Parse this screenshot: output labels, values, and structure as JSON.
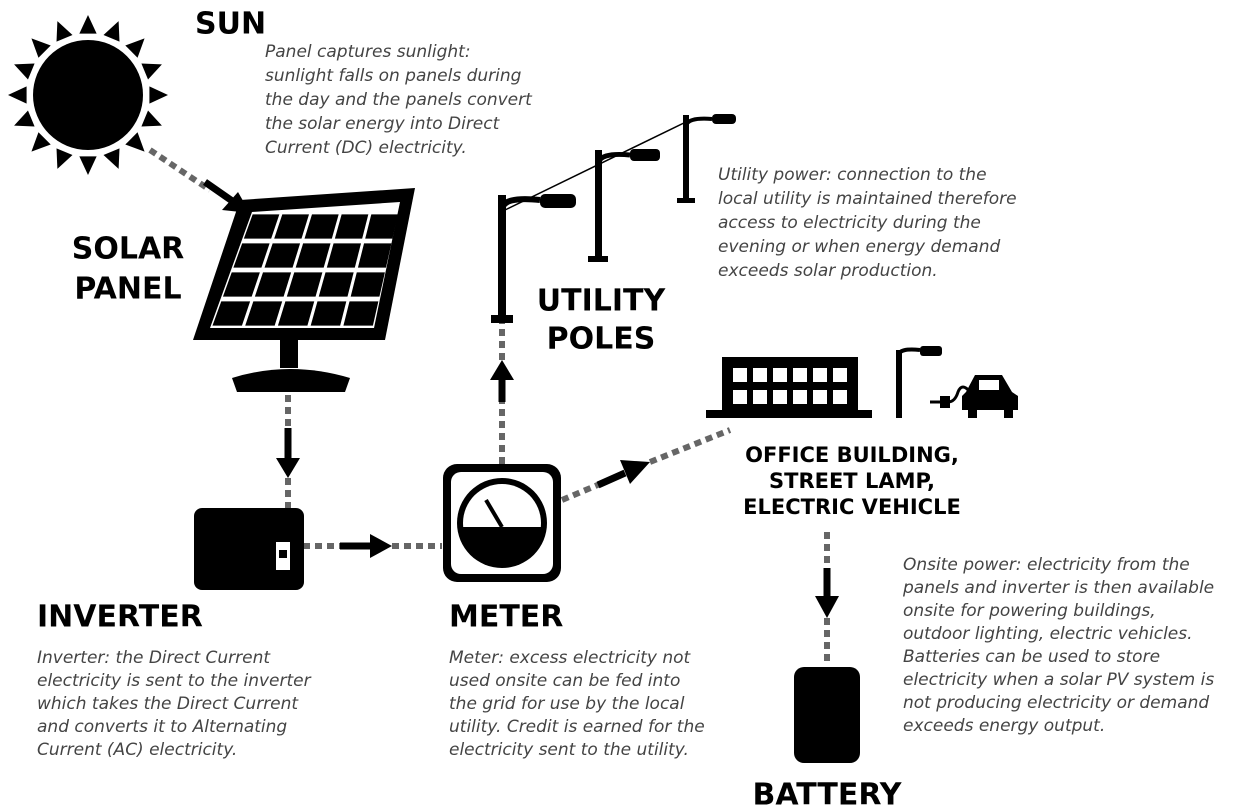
{
  "nodes": [
    {
      "id": "sun",
      "label": [
        "SUN"
      ],
      "description": [
        "Panel captures sunlight:",
        "sunlight falls on panels during",
        "the day and the panels convert",
        "the solar energy into Direct",
        "Current (DC) electricity."
      ]
    },
    {
      "id": "solar-panel",
      "label": [
        "SOLAR",
        "PANEL"
      ]
    },
    {
      "id": "utility-poles",
      "label": [
        "UTILITY",
        "POLES"
      ],
      "description": [
        "Utility power: connection to the",
        "local utility is maintained therefore",
        "access to electricity during the",
        "evening or when energy demand",
        "exceeds solar production."
      ]
    },
    {
      "id": "inverter",
      "label": [
        "INVERTER"
      ],
      "description": [
        "Inverter: the Direct Current",
        "electricity is sent to the inverter",
        "which takes the Direct Current",
        "and converts it to Alternating",
        "Current (AC) electricity."
      ]
    },
    {
      "id": "meter",
      "label": [
        "METER"
      ],
      "description": [
        "Meter: excess electricity not",
        "used onsite can be fed into",
        "the grid for use by the local",
        "utility. Credit is earned for the",
        "electricity sent to the utility."
      ]
    },
    {
      "id": "office",
      "label": [
        "OFFICE BUILDING,",
        "STREET LAMP,",
        "ELECTRIC VEHICLE"
      ],
      "description": [
        "Onsite power: electricity from the",
        "panels and inverter is then available",
        "onsite for powering buildings,",
        "outdoor lighting, electric vehicles.",
        "Batteries can be used to store",
        "electricity when a solar PV system is",
        "not producing electricity or demand",
        "exceeds energy output."
      ]
    },
    {
      "id": "battery",
      "label": [
        "BATTERY"
      ]
    }
  ]
}
